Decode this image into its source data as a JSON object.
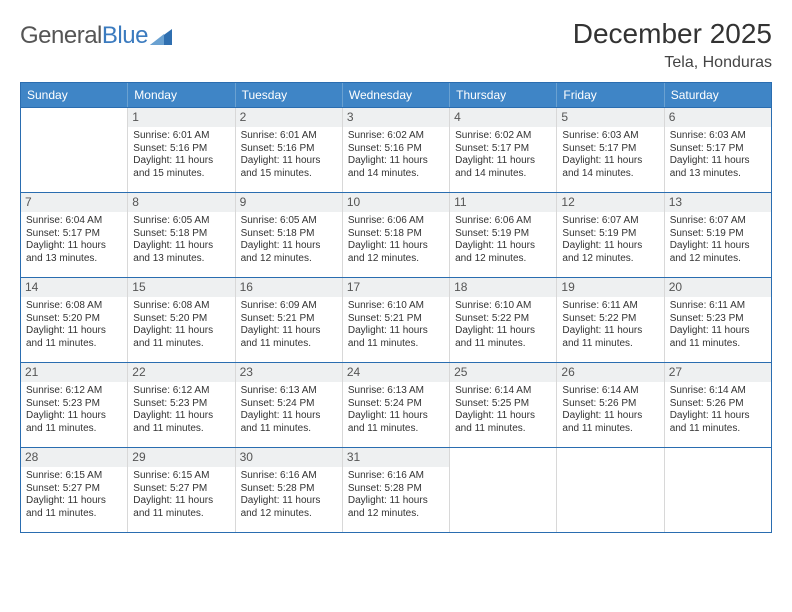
{
  "brand": {
    "name_part1": "General",
    "name_part2": "Blue",
    "triangle_color": "#2f6fb0"
  },
  "header": {
    "month_title": "December 2025",
    "location": "Tela, Honduras"
  },
  "style": {
    "header_bg": "#3f85c6",
    "header_text": "#ffffff",
    "border_color": "#2a6db0",
    "daynum_bg": "#eef0f1",
    "cell_font_size": 10,
    "title_font_size": 28
  },
  "days_of_week": [
    "Sunday",
    "Monday",
    "Tuesday",
    "Wednesday",
    "Thursday",
    "Friday",
    "Saturday"
  ],
  "weeks": [
    [
      null,
      {
        "n": "1",
        "sr": "6:01 AM",
        "ss": "5:16 PM",
        "dl": "11 hours and 15 minutes."
      },
      {
        "n": "2",
        "sr": "6:01 AM",
        "ss": "5:16 PM",
        "dl": "11 hours and 15 minutes."
      },
      {
        "n": "3",
        "sr": "6:02 AM",
        "ss": "5:16 PM",
        "dl": "11 hours and 14 minutes."
      },
      {
        "n": "4",
        "sr": "6:02 AM",
        "ss": "5:17 PM",
        "dl": "11 hours and 14 minutes."
      },
      {
        "n": "5",
        "sr": "6:03 AM",
        "ss": "5:17 PM",
        "dl": "11 hours and 14 minutes."
      },
      {
        "n": "6",
        "sr": "6:03 AM",
        "ss": "5:17 PM",
        "dl": "11 hours and 13 minutes."
      }
    ],
    [
      {
        "n": "7",
        "sr": "6:04 AM",
        "ss": "5:17 PM",
        "dl": "11 hours and 13 minutes."
      },
      {
        "n": "8",
        "sr": "6:05 AM",
        "ss": "5:18 PM",
        "dl": "11 hours and 13 minutes."
      },
      {
        "n": "9",
        "sr": "6:05 AM",
        "ss": "5:18 PM",
        "dl": "11 hours and 12 minutes."
      },
      {
        "n": "10",
        "sr": "6:06 AM",
        "ss": "5:18 PM",
        "dl": "11 hours and 12 minutes."
      },
      {
        "n": "11",
        "sr": "6:06 AM",
        "ss": "5:19 PM",
        "dl": "11 hours and 12 minutes."
      },
      {
        "n": "12",
        "sr": "6:07 AM",
        "ss": "5:19 PM",
        "dl": "11 hours and 12 minutes."
      },
      {
        "n": "13",
        "sr": "6:07 AM",
        "ss": "5:19 PM",
        "dl": "11 hours and 12 minutes."
      }
    ],
    [
      {
        "n": "14",
        "sr": "6:08 AM",
        "ss": "5:20 PM",
        "dl": "11 hours and 11 minutes."
      },
      {
        "n": "15",
        "sr": "6:08 AM",
        "ss": "5:20 PM",
        "dl": "11 hours and 11 minutes."
      },
      {
        "n": "16",
        "sr": "6:09 AM",
        "ss": "5:21 PM",
        "dl": "11 hours and 11 minutes."
      },
      {
        "n": "17",
        "sr": "6:10 AM",
        "ss": "5:21 PM",
        "dl": "11 hours and 11 minutes."
      },
      {
        "n": "18",
        "sr": "6:10 AM",
        "ss": "5:22 PM",
        "dl": "11 hours and 11 minutes."
      },
      {
        "n": "19",
        "sr": "6:11 AM",
        "ss": "5:22 PM",
        "dl": "11 hours and 11 minutes."
      },
      {
        "n": "20",
        "sr": "6:11 AM",
        "ss": "5:23 PM",
        "dl": "11 hours and 11 minutes."
      }
    ],
    [
      {
        "n": "21",
        "sr": "6:12 AM",
        "ss": "5:23 PM",
        "dl": "11 hours and 11 minutes."
      },
      {
        "n": "22",
        "sr": "6:12 AM",
        "ss": "5:23 PM",
        "dl": "11 hours and 11 minutes."
      },
      {
        "n": "23",
        "sr": "6:13 AM",
        "ss": "5:24 PM",
        "dl": "11 hours and 11 minutes."
      },
      {
        "n": "24",
        "sr": "6:13 AM",
        "ss": "5:24 PM",
        "dl": "11 hours and 11 minutes."
      },
      {
        "n": "25",
        "sr": "6:14 AM",
        "ss": "5:25 PM",
        "dl": "11 hours and 11 minutes."
      },
      {
        "n": "26",
        "sr": "6:14 AM",
        "ss": "5:26 PM",
        "dl": "11 hours and 11 minutes."
      },
      {
        "n": "27",
        "sr": "6:14 AM",
        "ss": "5:26 PM",
        "dl": "11 hours and 11 minutes."
      }
    ],
    [
      {
        "n": "28",
        "sr": "6:15 AM",
        "ss": "5:27 PM",
        "dl": "11 hours and 11 minutes."
      },
      {
        "n": "29",
        "sr": "6:15 AM",
        "ss": "5:27 PM",
        "dl": "11 hours and 11 minutes."
      },
      {
        "n": "30",
        "sr": "6:16 AM",
        "ss": "5:28 PM",
        "dl": "11 hours and 12 minutes."
      },
      {
        "n": "31",
        "sr": "6:16 AM",
        "ss": "5:28 PM",
        "dl": "11 hours and 12 minutes."
      },
      null,
      null,
      null
    ]
  ],
  "labels": {
    "sunrise": "Sunrise:",
    "sunset": "Sunset:",
    "daylight": "Daylight:"
  }
}
